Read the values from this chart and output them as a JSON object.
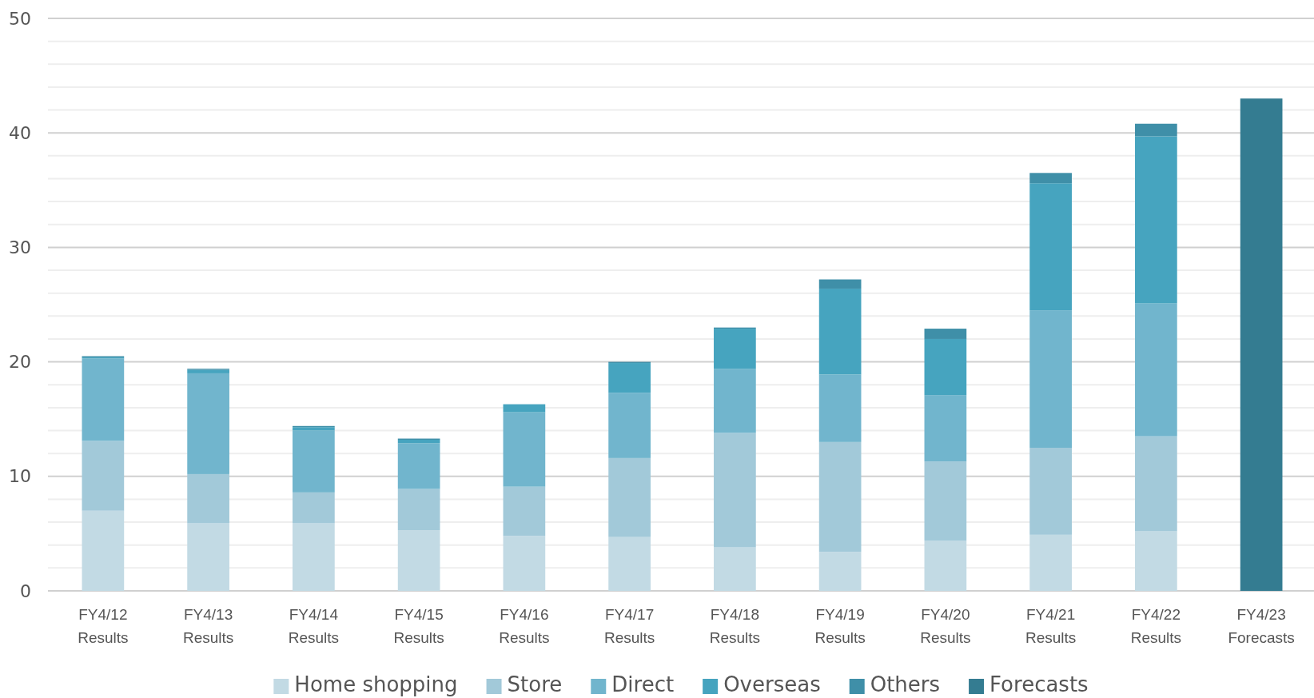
{
  "chart_data": {
    "type": "bar",
    "stacked": true,
    "categories": [
      "FY4/12 Results",
      "FY4/13 Results",
      "FY4/14 Results",
      "FY4/15 Results",
      "FY4/16 Results",
      "FY4/17 Results",
      "FY4/18 Results",
      "FY4/19 Results",
      "FY4/20 Results",
      "FY4/21 Results",
      "FY4/22 Results",
      "FY4/23 Forecasts"
    ],
    "series": [
      {
        "name": "Home shopping",
        "color": "#c2dae4",
        "values": [
          7.0,
          5.9,
          5.9,
          5.3,
          4.8,
          4.7,
          3.8,
          3.4,
          4.4,
          4.9,
          5.2,
          null
        ]
      },
      {
        "name": "Store",
        "color": "#a2c9d9",
        "values": [
          6.1,
          4.3,
          2.7,
          3.6,
          4.3,
          6.9,
          10.0,
          9.6,
          6.9,
          7.6,
          8.3,
          null
        ]
      },
      {
        "name": "Direct",
        "color": "#71b5cd",
        "values": [
          7.2,
          8.8,
          5.4,
          4.0,
          6.5,
          5.7,
          5.6,
          5.9,
          5.8,
          12.0,
          11.6,
          null
        ]
      },
      {
        "name": "Overseas",
        "color": "#46a4bf",
        "values": [
          0.1,
          0.3,
          0.3,
          0.3,
          0.7,
          2.6,
          3.5,
          7.5,
          4.9,
          11.1,
          14.6,
          null
        ]
      },
      {
        "name": "Others",
        "color": "#3f8fa8",
        "values": [
          0.1,
          0.1,
          0.1,
          0.1,
          0,
          0.1,
          0.1,
          0.8,
          0.9,
          0.9,
          1.1,
          null
        ]
      },
      {
        "name": "Forecasts",
        "color": "#347c91",
        "values": [
          null,
          null,
          null,
          null,
          null,
          null,
          null,
          null,
          null,
          null,
          null,
          43.0
        ]
      }
    ],
    "ylim": [
      0,
      50
    ],
    "yticks": [
      0,
      {
        "value": 2,
        "label": null
      },
      {
        "value": 4,
        "label": null
      },
      {
        "value": 6,
        "label": null
      },
      {
        "value": 8,
        "label": null
      },
      10,
      {
        "value": 12,
        "label": null
      },
      {
        "value": 14,
        "label": null
      },
      {
        "value": 16,
        "label": null
      },
      {
        "value": 18,
        "label": null
      },
      20,
      {
        "value": 22,
        "label": null
      },
      {
        "value": 24,
        "label": null
      },
      {
        "value": 26,
        "label": null
      },
      {
        "value": 28,
        "label": null
      },
      30,
      {
        "value": 32,
        "label": null
      },
      {
        "value": 34,
        "label": null
      },
      {
        "value": 36,
        "label": null
      },
      {
        "value": 38,
        "label": null
      },
      40,
      {
        "value": 42,
        "label": null
      },
      {
        "value": 44,
        "label": null
      },
      {
        "value": 46,
        "label": null
      },
      {
        "value": 48,
        "label": null
      },
      50
    ],
    "grid": "y",
    "legend": "bottom"
  }
}
